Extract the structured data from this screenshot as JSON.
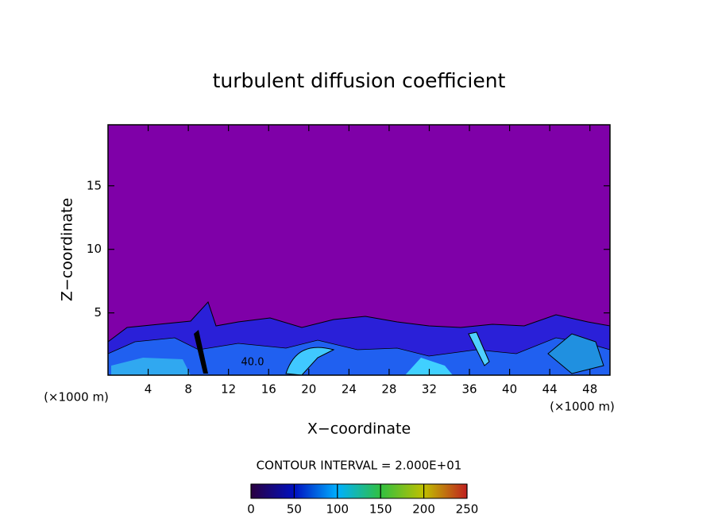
{
  "chart_data": {
    "type": "contour",
    "title": "turbulent diffusion coefficient",
    "x_label": "X−coordinate",
    "y_label": "Z−coordinate",
    "x_unit_left": "(×1000 m)",
    "x_unit_right": "(×1000 m)",
    "xlim": [
      0,
      50
    ],
    "xticks": [
      4,
      8,
      12,
      16,
      20,
      24,
      28,
      32,
      36,
      40,
      44,
      48
    ],
    "ylim": [
      0.1,
      19.8
    ],
    "yticks": [
      5,
      10,
      15
    ],
    "background_color": "#7f00a8",
    "contour_labels": [
      {
        "value": 40,
        "label": "40.0"
      }
    ],
    "contour_interval_text": "CONTOUR INTERVAL = 2.000E+01",
    "colorbar": {
      "lim": [
        0,
        250
      ],
      "ticks": [
        0,
        50,
        100,
        150,
        200,
        250
      ],
      "colors": [
        "#2a0040",
        "#0010c0",
        "#00b0ff",
        "#30c040",
        "#c0c000",
        "#c02020"
      ]
    }
  }
}
